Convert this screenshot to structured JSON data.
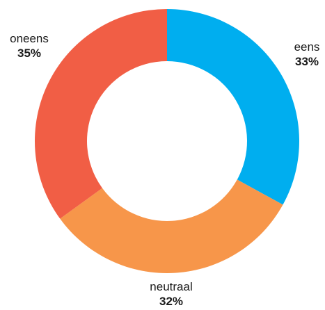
{
  "chart_data": {
    "type": "pie",
    "variant": "donut",
    "title": "",
    "slices": [
      {
        "label": "eens",
        "value": 33,
        "display": "33%",
        "color": "#00AEEF"
      },
      {
        "label": "neutraal",
        "value": 32,
        "display": "32%",
        "color": "#F7964A"
      },
      {
        "label": "oneens",
        "value": 35,
        "display": "35%",
        "color": "#F15E45"
      }
    ],
    "start": "top",
    "direction": "clockwise",
    "legend": "none"
  }
}
